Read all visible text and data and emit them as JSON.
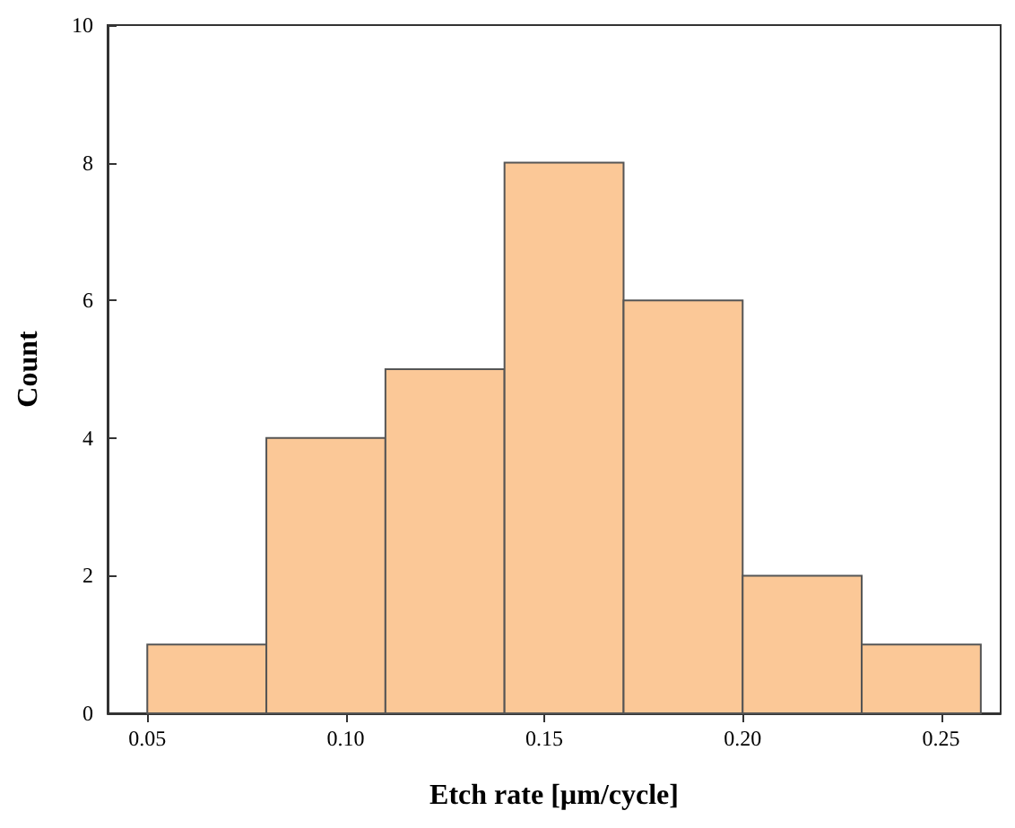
{
  "chart_data": {
    "type": "histogram",
    "xlabel": "Etch rate [µm/cycle]",
    "ylabel": "Count",
    "bins": [
      0.05,
      0.08,
      0.11,
      0.14,
      0.17,
      0.2,
      0.23,
      0.26
    ],
    "values": [
      1,
      4,
      5,
      8,
      6,
      2,
      1
    ],
    "color": "#fbc897",
    "xlim": [
      0.04,
      0.265
    ],
    "xticks": [
      {
        "value": 0.05,
        "label": "0.05"
      },
      {
        "value": 0.1,
        "label": "0.10"
      },
      {
        "value": 0.15,
        "label": "0.15"
      },
      {
        "value": 0.2,
        "label": "0.20"
      },
      {
        "value": 0.25,
        "label": "0.25"
      }
    ],
    "ylim": [
      0,
      10
    ],
    "yticks": [
      0,
      2,
      4,
      6,
      8,
      10
    ],
    "grid": false
  }
}
